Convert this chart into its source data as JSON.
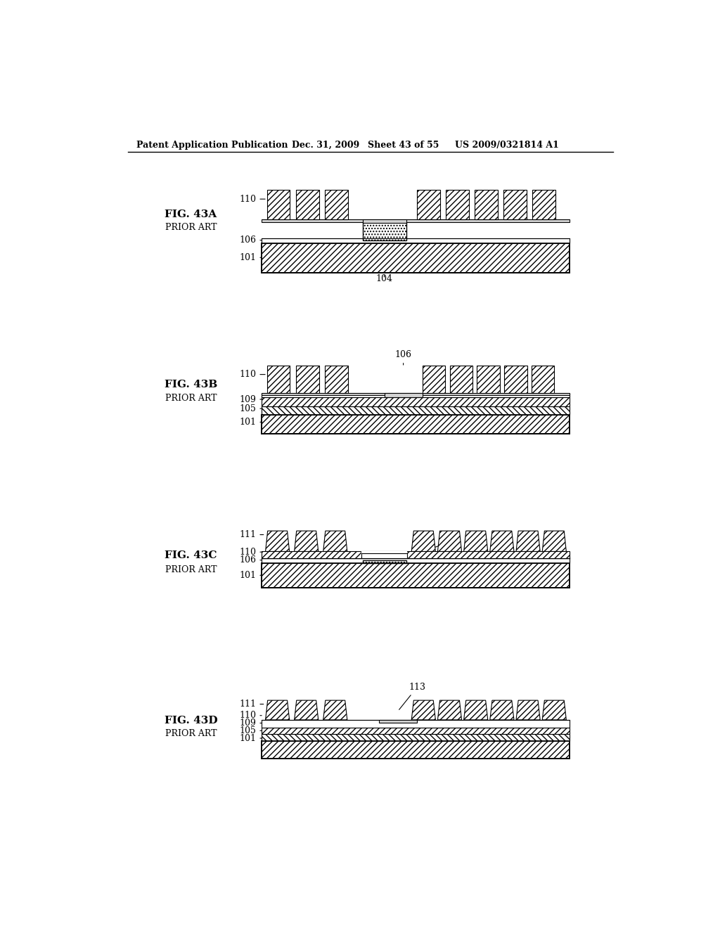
{
  "title_line1": "Patent Application Publication",
  "title_line2": "Dec. 31, 2009",
  "title_line3": "Sheet 43 of 55",
  "title_line4": "US 2009/0321814 A1",
  "background_color": "#ffffff",
  "prior_art": "PRIOR ART"
}
